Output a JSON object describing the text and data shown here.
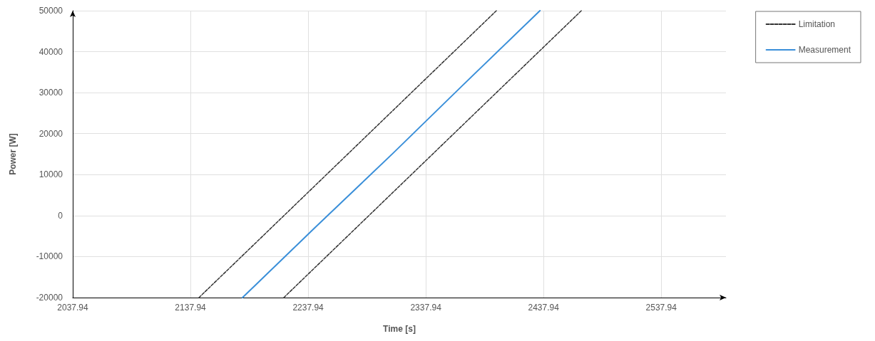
{
  "chart_data": {
    "type": "line",
    "xlabel": "Time [s]",
    "ylabel": "Power [W]",
    "xlim": [
      2037.94,
      2592.94
    ],
    "xticks": [
      2037.94,
      2137.94,
      2237.94,
      2337.94,
      2437.94,
      2537.94
    ],
    "ylim": [
      -20000,
      50000
    ],
    "yticks": [
      -20000,
      -10000,
      0,
      10000,
      20000,
      30000,
      40000,
      50000
    ],
    "grid": true,
    "legend": "top right",
    "marker": "none",
    "series": [
      {
        "name": "Limitation",
        "color": "#333333",
        "line_style": "dashed",
        "x": [
          2145.2,
          2397.9
        ],
        "values": [
          -20000,
          50000
        ]
      },
      {
        "color": "#333333",
        "line_style": "dashed",
        "x": [
          2217.3,
          2470.1
        ],
        "values": [
          -20000,
          50000
        ]
      },
      {
        "name": "Measurement",
        "color": "#3a8fd9",
        "line_style": "solid",
        "x": [
          2182.2,
          2245,
          2310,
          2370,
          2434.9
        ],
        "values": [
          -20000,
          -2600,
          15200,
          32000,
          50000
        ]
      }
    ]
  }
}
